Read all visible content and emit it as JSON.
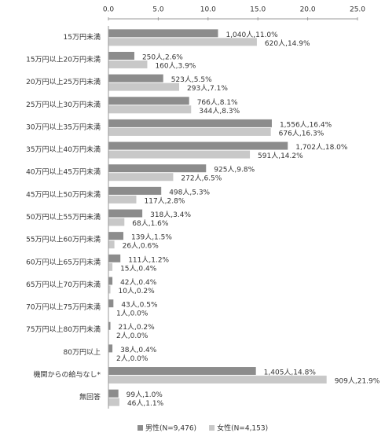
{
  "chart_data": {
    "type": "hbar",
    "categories": [
      "15万円未満",
      "15万円以上20万円未満",
      "20万円以上25万円未満",
      "25万円以上30万円未満",
      "30万円以上35万円未満",
      "35万円以上40万円未満",
      "40万円以上45万円未満",
      "45万円以上50万円未満",
      "50万円以上55万円未満",
      "55万円以上60万円未満",
      "60万円以上65万円未満",
      "65万円以上70万円未満",
      "70万円以上75万円未満",
      "75万円以上80万円未満",
      "80万円以上",
      "機関からの給与なし*",
      "無回答"
    ],
    "series": [
      {
        "name": "男性(N=9,476)",
        "color": "#8c8c8c",
        "values": [
          11.0,
          2.6,
          5.5,
          8.1,
          16.4,
          18.0,
          9.8,
          5.3,
          3.4,
          1.5,
          1.2,
          0.4,
          0.5,
          0.2,
          0.4,
          14.8,
          1.0
        ],
        "value_labels": [
          "1,040人,11.0%",
          "250人,2.6%",
          "523人,5.5%",
          "766人,8.1%",
          "1,556人,16.4%",
          "1,702人,18.0%",
          "925人,9.8%",
          "498人,5.3%",
          "318人,3.4%",
          "139人,1.5%",
          "111人,1.2%",
          "42人,0.4%",
          "43人,0.5%",
          "21人,0.2%",
          "38人,0.4%",
          "1,405人,14.8%",
          "99人,1.0%"
        ]
      },
      {
        "name": "女性(N=4,153)",
        "color": "#c8c8c8",
        "values": [
          14.9,
          3.9,
          7.1,
          8.3,
          16.3,
          14.2,
          6.5,
          2.8,
          1.6,
          0.6,
          0.4,
          0.2,
          0.0,
          0.0,
          0.0,
          21.9,
          1.1
        ],
        "value_labels": [
          "620人,14.9%",
          "160人,3.9%",
          "293人,7.1%",
          "344人,8.3%",
          "676人,16.3%",
          "591人,14.2%",
          "272人,6.5%",
          "117人,2.8%",
          "68人,1.6%",
          "26人,0.6%",
          "15人,0.4%",
          "10人,0.2%",
          "1人,0.0%",
          "2人,0.0%",
          "2人,0.0%",
          "909人,21.9%",
          "46人,1.1%"
        ]
      }
    ],
    "xlim": [
      0,
      25
    ],
    "xticks": [
      {
        "value": 0,
        "label": "0.0"
      },
      {
        "value": 5,
        "label": "5.0"
      },
      {
        "value": 10,
        "label": "10.0"
      },
      {
        "value": 15,
        "label": "15.0"
      },
      {
        "value": 20,
        "label": "20.0"
      },
      {
        "value": 25,
        "label": "25.0"
      }
    ],
    "grid": false,
    "legend": "bottom"
  }
}
